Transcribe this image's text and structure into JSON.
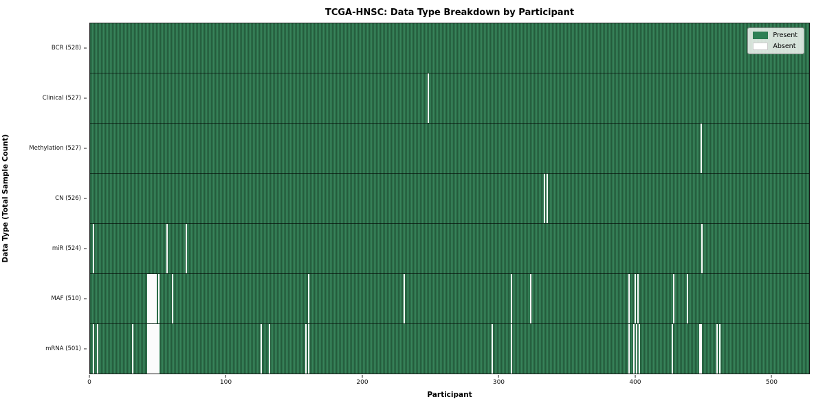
{
  "title": "TCGA-HNSC: Data Type Breakdown by Participant",
  "legend": {
    "present_label": "Present",
    "absent_label": "Absent"
  },
  "colors": {
    "present": "#2e8055",
    "present_stripe_dark": "#245c3c",
    "absent": "#fbfbfb"
  },
  "chart_data": {
    "type": "heatmap",
    "title": "TCGA-HNSC: Data Type Breakdown by Participant",
    "xlabel": "Participant",
    "ylabel": "Data Type (Total Sample Count)",
    "legend": [
      "Present",
      "Absent"
    ],
    "legend_position": "upper right",
    "x_range": [
      0,
      528
    ],
    "x_ticks": [
      0,
      100,
      200,
      300,
      400,
      500
    ],
    "value_encoding": {
      "present": "green cell",
      "absent": "white cell"
    },
    "rows": [
      {
        "label": "BCR (528)",
        "data_type": "BCR",
        "total": 528,
        "absent_participants": []
      },
      {
        "label": "Clinical (527)",
        "data_type": "Clinical",
        "total": 527,
        "absent_participants": [
          248
        ]
      },
      {
        "label": "Methylation (527)",
        "data_type": "Methylation",
        "total": 527,
        "absent_participants": [
          448
        ]
      },
      {
        "label": "CN (526)",
        "data_type": "CN",
        "total": 526,
        "absent_participants": [
          333,
          335
        ]
      },
      {
        "label": "miR (524)",
        "data_type": "miR",
        "total": 524,
        "absent_participants": [
          2,
          56,
          70,
          449
        ]
      },
      {
        "label": "MAF (510)",
        "data_type": "MAF",
        "total": 510,
        "absent_participants": [
          42,
          43,
          44,
          45,
          46,
          47,
          48,
          50,
          60,
          160,
          230,
          309,
          323,
          395,
          400,
          402,
          428,
          438
        ]
      },
      {
        "label": "mRNA (501)",
        "data_type": "mRNA",
        "total": 501,
        "absent_participants": [
          2,
          5,
          31,
          42,
          43,
          44,
          45,
          46,
          47,
          48,
          49,
          50,
          125,
          131,
          158,
          160,
          295,
          309,
          395,
          399,
          401,
          403,
          427,
          447,
          448,
          460,
          462
        ]
      }
    ]
  }
}
